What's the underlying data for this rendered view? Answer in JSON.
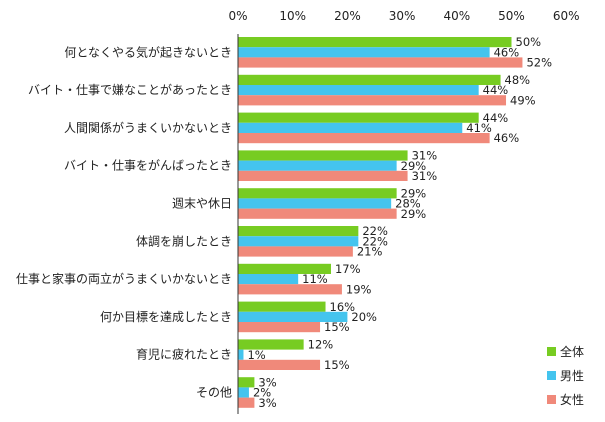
{
  "chart_data": {
    "type": "bar",
    "orientation": "horizontal",
    "categories": [
      "何となくやる気が起きないとき",
      "バイト・仕事で嫌なことがあったとき",
      "人間関係がうまくいかないとき",
      "バイト・仕事をがんばったとき",
      "週末や休日",
      "体調を崩したとき",
      "仕事と家事の両立がうまくいかないとき",
      "何か目標を達成したとき",
      "育児に疲れたとき",
      "その他"
    ],
    "series": [
      {
        "name": "全体",
        "color": "#77cc22",
        "values": [
          50,
          48,
          44,
          31,
          29,
          22,
          17,
          16,
          12,
          3
        ]
      },
      {
        "name": "男性",
        "color": "#44c4ee",
        "values": [
          46,
          44,
          41,
          29,
          28,
          22,
          11,
          20,
          1,
          2
        ]
      },
      {
        "name": "女性",
        "color": "#f0897a",
        "values": [
          52,
          49,
          46,
          31,
          29,
          21,
          19,
          15,
          15,
          3
        ]
      }
    ],
    "xlim": [
      0,
      60
    ],
    "xticks": [
      "0%",
      "10%",
      "20%",
      "30%",
      "40%",
      "50%",
      "60%"
    ],
    "value_suffix": "%",
    "legend_position": "bottom-right",
    "grid": false
  }
}
